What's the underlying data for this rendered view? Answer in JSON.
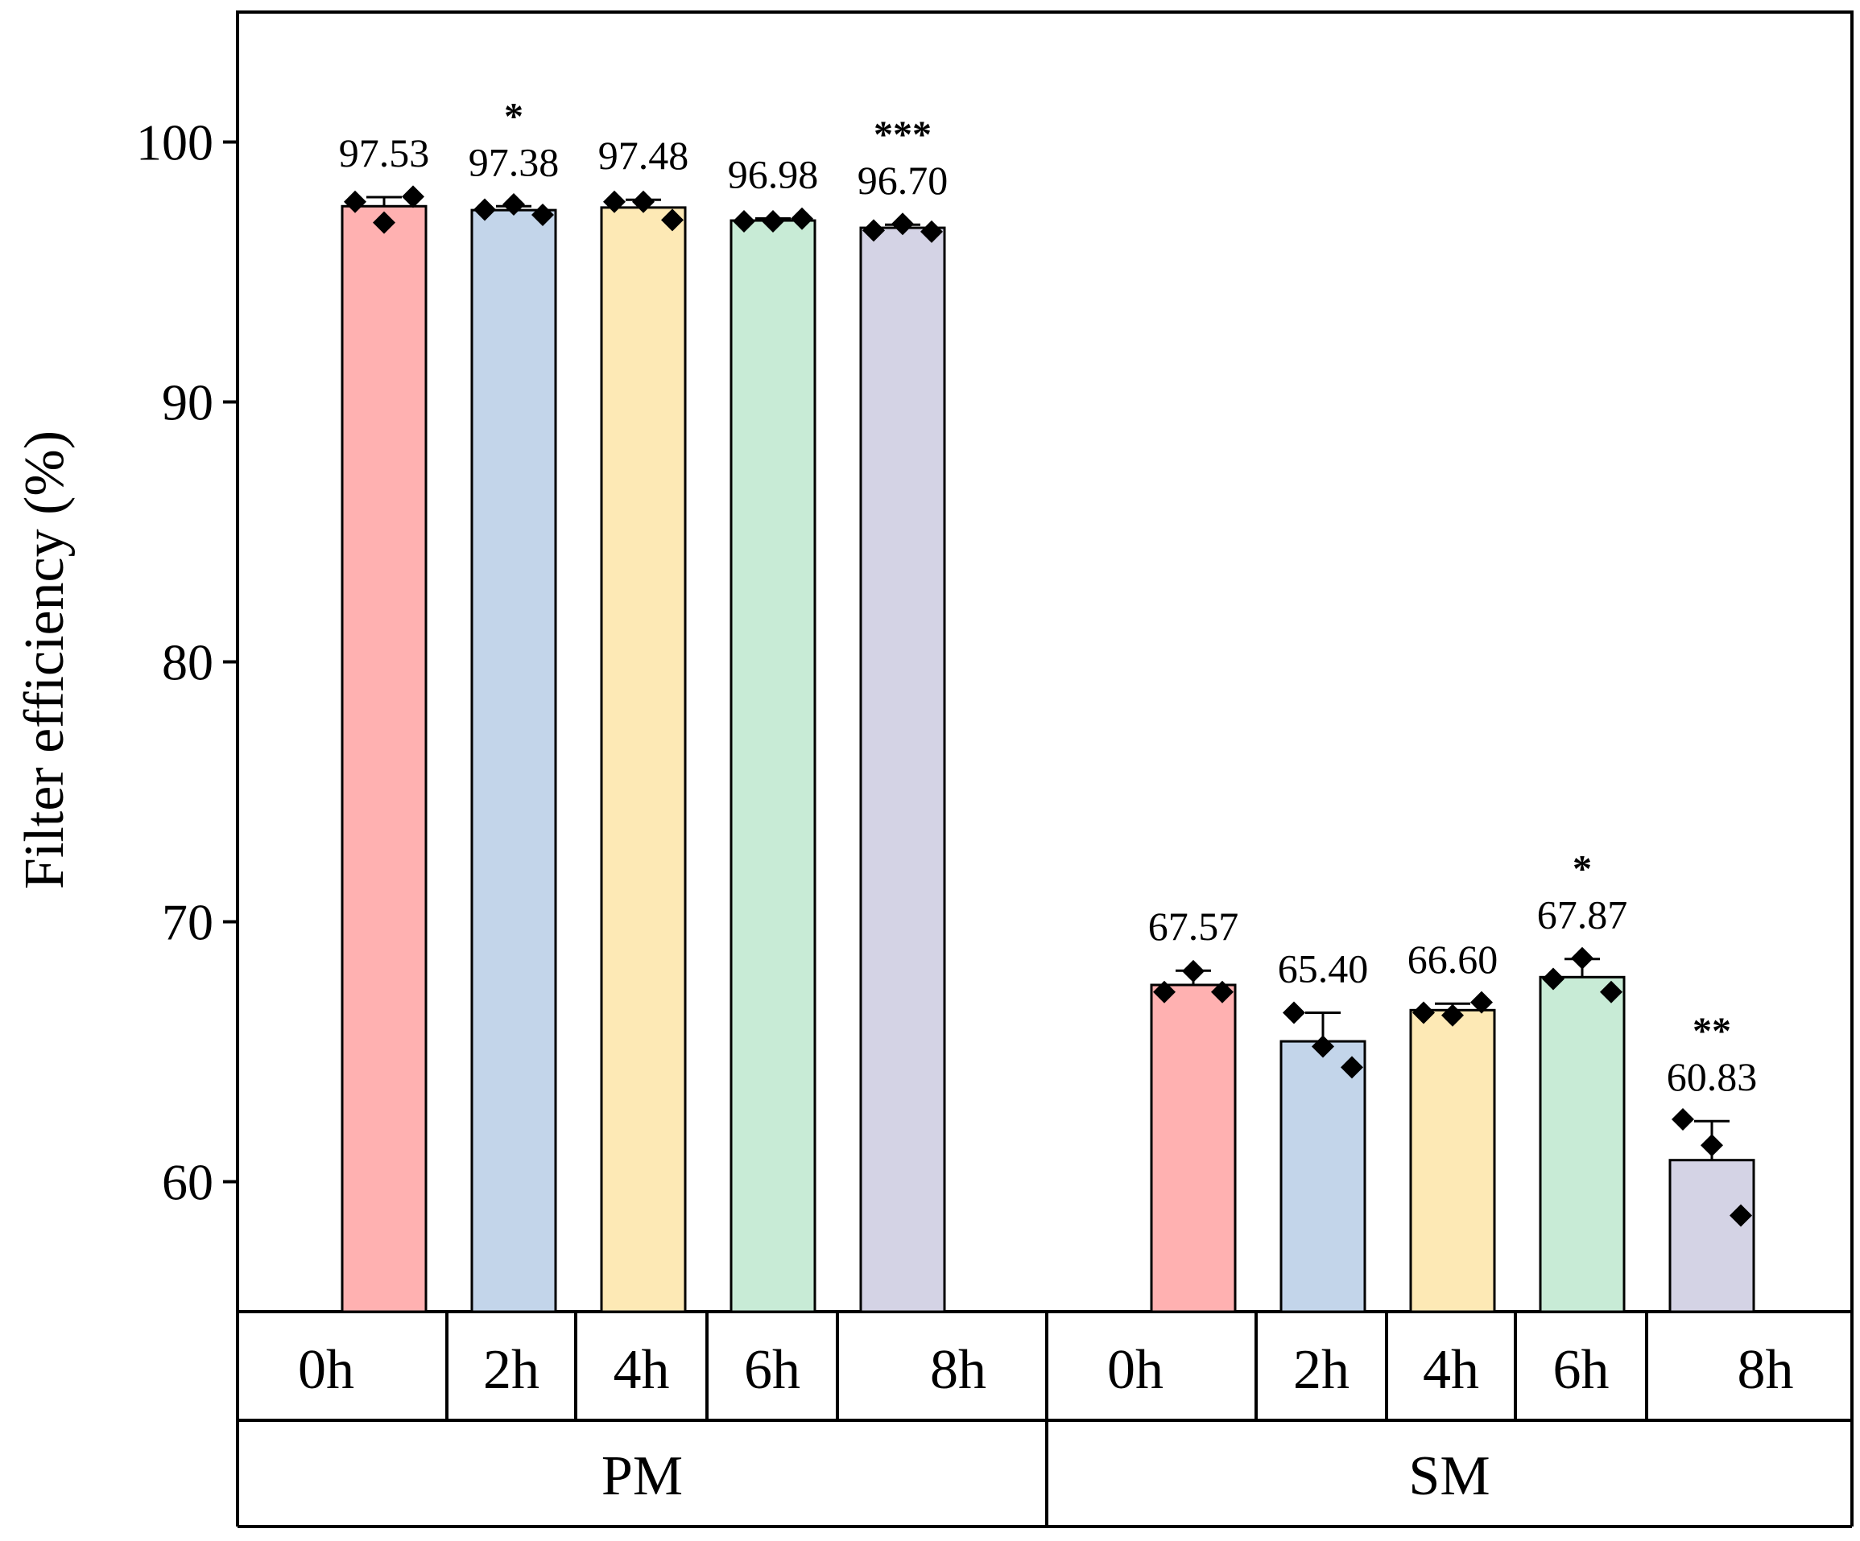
{
  "chart_data": {
    "type": "bar",
    "ylabel": "Filter efficiency (%)",
    "ylim": [
      55,
      105
    ],
    "yticks": [
      60,
      70,
      80,
      90,
      100
    ],
    "groups": [
      {
        "name": "PM",
        "categories": [
          "0h",
          "2h",
          "4h",
          "6h",
          "8h"
        ],
        "values": [
          97.53,
          97.38,
          97.48,
          96.98,
          96.7
        ],
        "value_labels": [
          "97.53",
          "97.38",
          "97.48",
          "96.98",
          "96.70"
        ],
        "errors": [
          0.35,
          0.15,
          0.3,
          0.08,
          0.12
        ],
        "significance": [
          "",
          "*",
          "",
          "",
          "***"
        ],
        "points": [
          [
            97.7,
            96.9,
            97.9
          ],
          [
            97.4,
            97.6,
            97.2
          ],
          [
            97.7,
            97.7,
            97.0
          ],
          [
            96.95,
            96.95,
            97.05
          ],
          [
            96.6,
            96.85,
            96.55
          ]
        ]
      },
      {
        "name": "SM",
        "categories": [
          "0h",
          "2h",
          "4h",
          "6h",
          "8h"
        ],
        "values": [
          67.57,
          65.4,
          66.6,
          67.87,
          60.83
        ],
        "value_labels": [
          "67.57",
          "65.40",
          "66.60",
          "67.87",
          "60.83"
        ],
        "errors": [
          0.55,
          1.1,
          0.25,
          0.7,
          1.5
        ],
        "significance": [
          "",
          "",
          "",
          "*",
          "**"
        ],
        "points": [
          [
            67.3,
            68.1,
            67.3
          ],
          [
            66.5,
            65.2,
            64.4
          ],
          [
            66.5,
            66.4,
            66.9
          ],
          [
            67.8,
            68.6,
            67.3
          ],
          [
            62.4,
            61.4,
            58.7
          ]
        ]
      }
    ],
    "colors": [
      "#ffb1b1",
      "#c3d5ea",
      "#fde9b5",
      "#c8ebd6",
      "#d4d3e5"
    ],
    "grid": false,
    "legend": "none"
  }
}
